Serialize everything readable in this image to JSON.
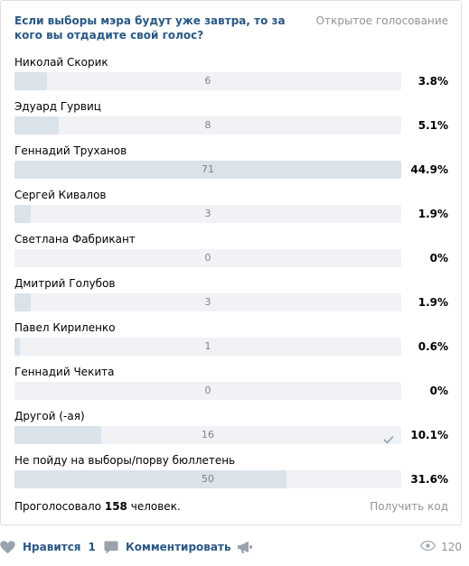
{
  "poll": {
    "title": "Если выборы мэра будут уже завтра, то за кого вы отдадите свой голос?",
    "type": "Открытое голосование",
    "options": [
      {
        "label": "Николай Скорик",
        "votes": "6",
        "percent": "3.8%",
        "fraction": 0.038,
        "chosen": false
      },
      {
        "label": "Эдуард Гурвиц",
        "votes": "8",
        "percent": "5.1%",
        "fraction": 0.051,
        "chosen": false
      },
      {
        "label": "Геннадий Труханов",
        "votes": "71",
        "percent": "44.9%",
        "fraction": 0.449,
        "chosen": false
      },
      {
        "label": "Сергей Кивалов",
        "votes": "3",
        "percent": "1.9%",
        "fraction": 0.019,
        "chosen": false
      },
      {
        "label": "Светлана Фабрикант",
        "votes": "0",
        "percent": "0%",
        "fraction": 0,
        "chosen": false
      },
      {
        "label": "Дмитрий Голубов",
        "votes": "3",
        "percent": "1.9%",
        "fraction": 0.019,
        "chosen": false
      },
      {
        "label": "Павел Кириленко",
        "votes": "1",
        "percent": "0.6%",
        "fraction": 0.006,
        "chosen": false
      },
      {
        "label": "Геннадий Чекита",
        "votes": "0",
        "percent": "0%",
        "fraction": 0,
        "chosen": false
      },
      {
        "label": "Другой (-ая)",
        "votes": "16",
        "percent": "10.1%",
        "fraction": 0.101,
        "chosen": true
      },
      {
        "label": "Не пойду на выборы/порву бюллетень",
        "votes": "50",
        "percent": "31.6%",
        "fraction": 0.316,
        "chosen": false
      }
    ],
    "voted_prefix": "Проголосовало",
    "voted_count": "158",
    "voted_suffix": "человек.",
    "get_code": "Получить код"
  },
  "actions": {
    "like_label": "Нравится",
    "like_count": "1",
    "comment_label": "Комментировать",
    "share_icon": "megaphone-icon",
    "views_count": "120"
  },
  "colors": {
    "link": "#2a5885",
    "muted": "#939393",
    "bar_bg": "#f0f2f5",
    "bar_fill": "#dae2ea",
    "icon": "#99a2ad"
  }
}
